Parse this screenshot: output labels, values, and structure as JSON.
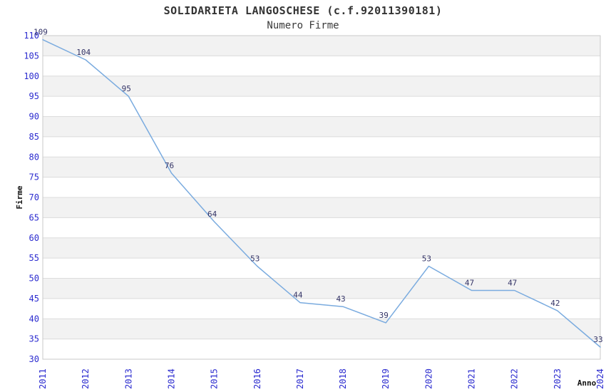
{
  "chart_data": {
    "type": "line",
    "title": "SOLIDARIETA LANGOSCHESE (c.f.92011390181)",
    "subtitle": "Numero Firme",
    "xlabel": "Anno",
    "ylabel": "Firme",
    "categories": [
      "2011",
      "2012",
      "2013",
      "2014",
      "2015",
      "2016",
      "2017",
      "2018",
      "2019",
      "2020",
      "2021",
      "2022",
      "2023",
      "2024"
    ],
    "values": [
      109,
      104,
      95,
      76,
      64,
      53,
      44,
      43,
      39,
      53,
      47,
      47,
      42,
      33
    ],
    "ylim": [
      30,
      110
    ],
    "ytick_step": 5,
    "grid": "horizontal-bands",
    "legend": "none",
    "point_labels_visible": true,
    "colors": {
      "line": "#7aabdf",
      "tick_label": "#2b2bcf",
      "point_label": "#333366",
      "band_gray": "#f2f2f2",
      "gridline": "#dcdcdc",
      "plot_border": "#c9c9c9",
      "title": "#333333",
      "axis_title": "#111111",
      "background": "#ffffff"
    }
  }
}
